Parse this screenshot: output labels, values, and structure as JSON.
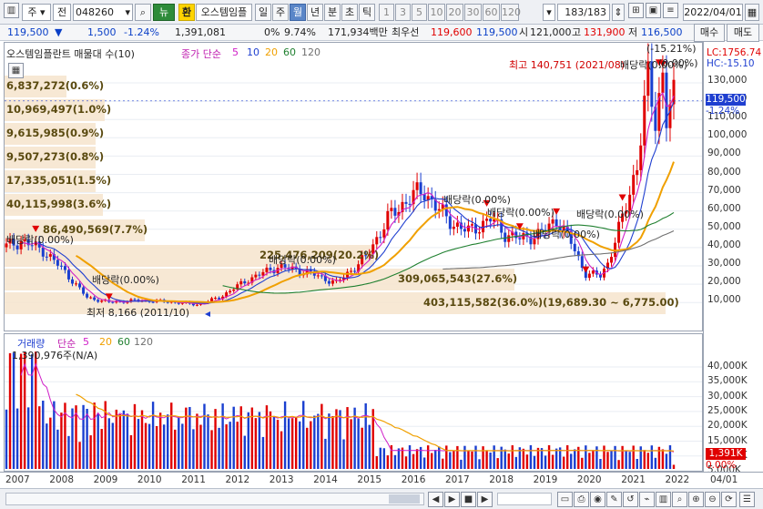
{
  "toolbar": {
    "market": "주",
    "period_type": "전",
    "code": "048260",
    "new_btn": "뉴",
    "exchange_btn": "환",
    "stock_name": "오스템임플",
    "periods": [
      "일",
      "주",
      "월",
      "년",
      "분",
      "초",
      "틱"
    ],
    "active_period": "월",
    "intervals": [
      "1",
      "3",
      "5",
      "10",
      "20",
      "30",
      "60",
      "120"
    ],
    "count": "183/183",
    "date": "2022/04/01"
  },
  "quote": {
    "price": "119,500",
    "change": "1,500",
    "change_pct": "-1.24%",
    "volume": "1,391,081",
    "vol_ratio": "0%",
    "turnover_pct": "9.74%",
    "trade_value": "171,934백만",
    "best_label": "최우선",
    "ask": "119,600",
    "bid": "119,500",
    "open_label": "시",
    "open": "121,000",
    "high_label": "고",
    "high": "131,900",
    "low_label": "저",
    "low": "116,500",
    "buy_label": "매수",
    "sell_label": "매도"
  },
  "price_panel": {
    "title": "오스템임플란트 매물대 수(10)",
    "ma_label": "종가 단순",
    "ma_periods": [
      "5",
      "10",
      "20",
      "60",
      "120"
    ],
    "lc": "LC:1756.74",
    "hc": "HC:-15.10",
    "pct_top": "(-15.21%)",
    "pct_right": "(0.00%)",
    "high_note": "최고 140,751 (2021/08)",
    "low_note": "최저 8,166 (2011/10)",
    "current_price_tag": "119,500",
    "current_pct_tag": "-1.24%",
    "bands": [
      "6,837,272(0.6%)",
      "10,969,497(1.0%)",
      "9,615,985(0.9%)",
      "9,507,273(0.8%)",
      "17,335,051(1.5%)",
      "40,115,998(3.6%)",
      "86,490,569(7.7%)",
      "225,476,209(20.2%)",
      "309,065,543(27.6%)",
      "403,115,582(36.0%)(19,689.30 ~ 6,775.00)"
    ],
    "dividends": [
      "배당락(0.00%)",
      "배당락(0.00%)",
      "배당락(0.00%)",
      "배당락(0.00%)",
      "배당락(0.00%)",
      "배당락(0.00%)",
      "배당락(0.00%)",
      "배당락(0.00%)"
    ],
    "y_ticks": [
      "130,000",
      "120,000",
      "110,000",
      "100,000",
      "90,000",
      "80,000",
      "70,000",
      "60,000",
      "50,000",
      "40,000",
      "30,000",
      "20,000",
      "10,000"
    ]
  },
  "volume_panel": {
    "title": "거래량",
    "ma_label": "단순",
    "ma_periods": [
      "5",
      "20",
      "60",
      "120"
    ],
    "last_volume": "1,390,976주(N/A)",
    "y_ticks": [
      "40,000K",
      "35,000K",
      "30,000K",
      "25,000K",
      "20,000K",
      "15,000K",
      "10,000K",
      "5,000K"
    ],
    "current_tag": "1,391K",
    "pct_tag": "0.00%"
  },
  "x_axis": {
    "years": [
      "2007",
      "2008",
      "2009",
      "2010",
      "2011",
      "2012",
      "2013",
      "2014",
      "2015",
      "2016",
      "2017",
      "2018",
      "2019",
      "2020",
      "2021",
      "2022"
    ],
    "right_label": "04/01"
  },
  "colors": {
    "up": "#e00000",
    "down": "#1a3fd0",
    "band": "#f6e4cc",
    "ma5": "#d020c8",
    "ma10": "#1f3fd0",
    "ma20": "#f0a000",
    "ma60": "#208030",
    "ma120": "#707070"
  }
}
